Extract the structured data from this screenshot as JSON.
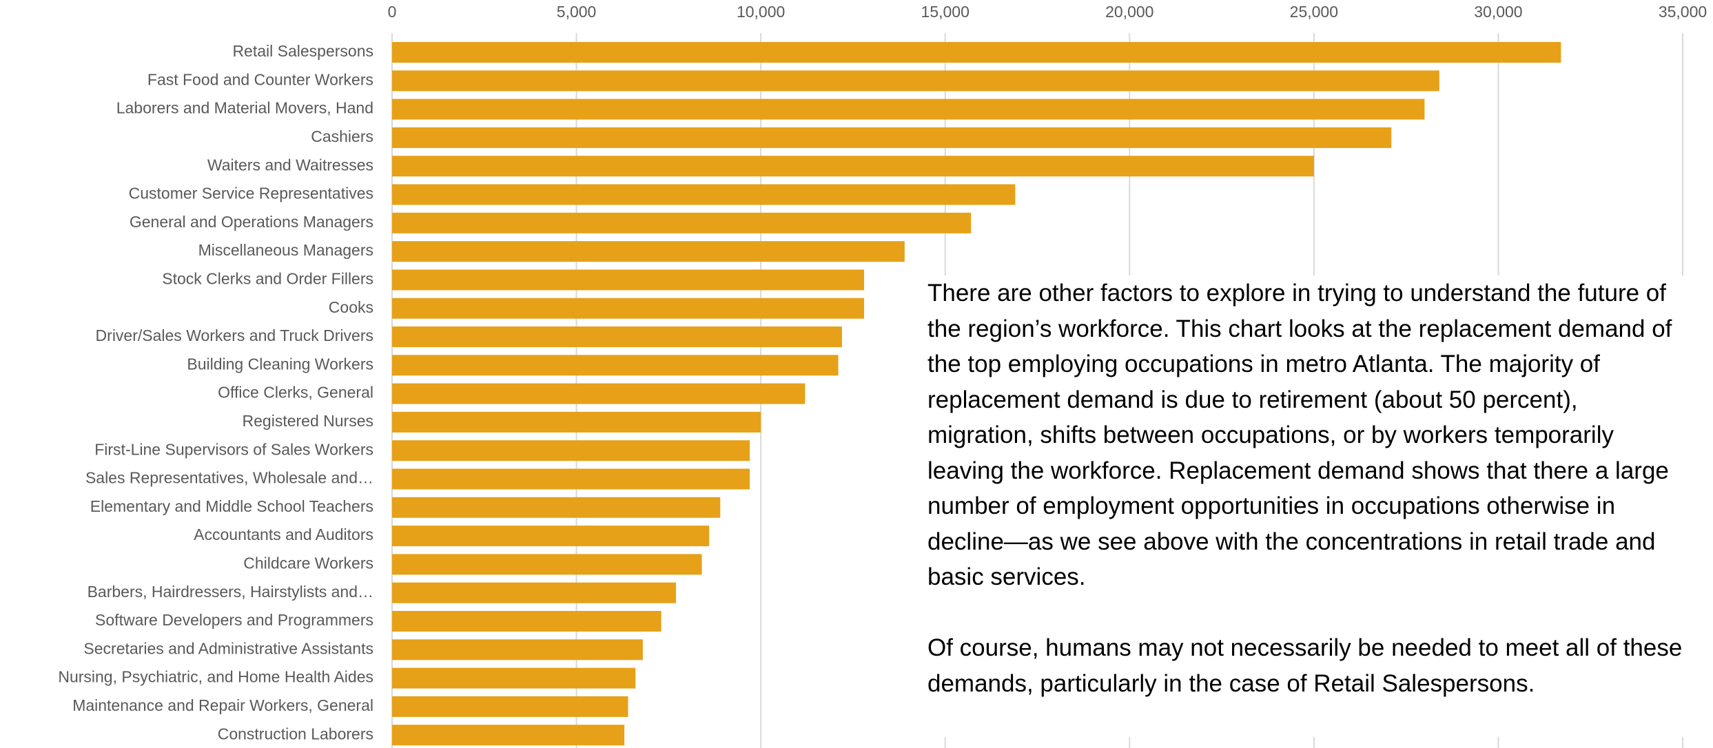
{
  "chart_data": {
    "type": "bar",
    "orientation": "horizontal",
    "categories": [
      "Retail Salespersons",
      "Fast Food and Counter Workers",
      "Laborers and Material Movers, Hand",
      "Cashiers",
      "Waiters and Waitresses",
      "Customer Service Representatives",
      "General and Operations Managers",
      "Miscellaneous Managers",
      "Stock Clerks and Order Fillers",
      "Cooks",
      "Driver/Sales Workers and Truck Drivers",
      "Building Cleaning Workers",
      "Office Clerks, General",
      "Registered Nurses",
      "First-Line Supervisors of Sales Workers",
      "Sales Representatives, Wholesale and…",
      "Elementary and Middle School Teachers",
      "Accountants and Auditors",
      "Childcare Workers",
      "Barbers, Hairdressers, Hairstylists and…",
      "Software Developers and Programmers",
      "Secretaries and Administrative Assistants",
      "Nursing, Psychiatric, and Home Health Aides",
      "Maintenance and Repair Workers, General",
      "Construction Laborers"
    ],
    "values": [
      31700,
      28400,
      28000,
      27100,
      25000,
      16900,
      15700,
      13900,
      12800,
      12800,
      12200,
      12100,
      11200,
      10000,
      9700,
      9700,
      8900,
      8600,
      8400,
      7700,
      7300,
      6800,
      6600,
      6400,
      6300
    ],
    "color": "#e6a118",
    "xlim": [
      0,
      35000
    ],
    "xticks": [
      0,
      {
        "value": 5000,
        "label": "5,000"
      },
      {
        "value": 10000,
        "label": "10,000"
      },
      {
        "value": 15000,
        "label": "15,000"
      },
      {
        "value": 20000,
        "label": "20,000"
      },
      {
        "value": 25000,
        "label": "25,000"
      },
      {
        "value": 30000,
        "label": "30,000"
      },
      {
        "value": 35000,
        "label": "35,000"
      }
    ],
    "grid": true,
    "annotations": [
      "There are other factors to explore in trying to understand the future of the region’s workforce. This chart looks at the replacement demand of the top employing occupations in metro Atlanta. The majority of replacement demand is due to retirement (about 50 percent), migration, shifts between occupations, or by workers temporarily leaving the workforce. Replacement demand shows that there a large number of employment opportunities in occupations otherwise in decline—as we see above with the concentrations in retail trade and basic services.",
      "Of course, humans may not necessarily be needed to meet all of these demands, particularly in the case of Retail Salespersons."
    ]
  }
}
